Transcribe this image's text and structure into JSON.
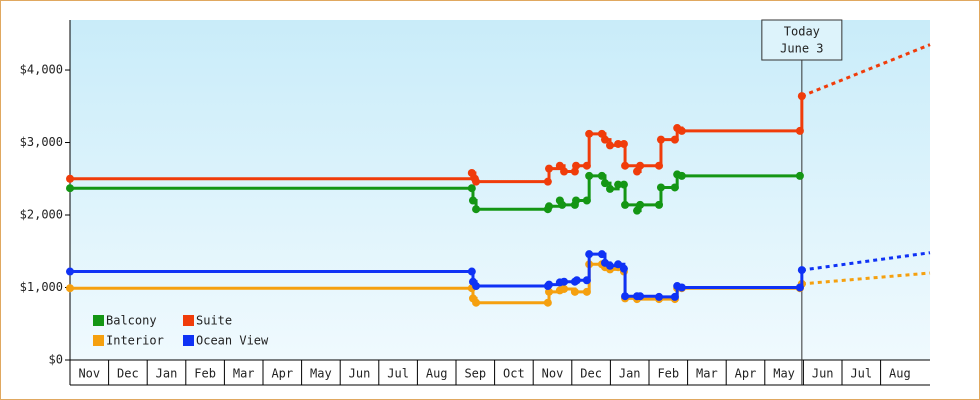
{
  "chart_data": {
    "type": "step-line",
    "categories": [
      "Nov",
      "Dec",
      "Jan",
      "Feb",
      "Mar",
      "Apr",
      "May",
      "Jun",
      "Jul",
      "Aug",
      "Sep",
      "Oct",
      "Nov",
      "Dec",
      "Jan",
      "Feb",
      "Mar",
      "Apr",
      "May",
      "Jun",
      "Jul",
      "Aug"
    ],
    "xlim": [
      0,
      22.28
    ],
    "ylim": [
      0,
      4690
    ],
    "yticks": [
      {
        "value": 0,
        "label": "$0"
      },
      {
        "value": 1000,
        "label": "$1,000"
      },
      {
        "value": 2000,
        "label": "$2,000"
      },
      {
        "value": 3000,
        "label": "$3,000"
      },
      {
        "value": 4000,
        "label": "$4,000"
      }
    ],
    "annotation": {
      "lines": [
        "Today",
        "June 3"
      ],
      "x": 18.96
    },
    "legend": "bottom-left",
    "series": [
      {
        "name": "Balcony",
        "color": "#149614",
        "x": [
          0,
          10.41,
          10.44,
          10.52,
          12.38,
          12.41,
          12.69,
          12.75,
          13.08,
          13.11,
          13.39,
          13.45,
          13.78,
          13.86,
          13.99,
          14.2,
          14.35,
          14.38,
          14.69,
          14.77,
          15.26,
          15.31,
          15.67,
          15.73,
          15.85,
          18.91
        ],
        "values": [
          2370,
          2370,
          2200,
          2080,
          2080,
          2120,
          2200,
          2140,
          2140,
          2200,
          2200,
          2540,
          2540,
          2440,
          2360,
          2420,
          2420,
          2140,
          2060,
          2140,
          2140,
          2380,
          2380,
          2560,
          2540,
          2540
        ]
      },
      {
        "name": "Suite",
        "color": "#f03c0a",
        "x": [
          0,
          10.41,
          10.49,
          10.52,
          12.38,
          12.41,
          12.69,
          12.8,
          13.08,
          13.11,
          13.39,
          13.45,
          13.78,
          13.86,
          13.99,
          14.2,
          14.35,
          14.38,
          14.69,
          14.77,
          15.26,
          15.31,
          15.67,
          15.73,
          15.85,
          18.91,
          18.96
        ],
        "values": [
          2500,
          2580,
          2500,
          2460,
          2460,
          2640,
          2680,
          2600,
          2600,
          2680,
          2680,
          3120,
          3120,
          3040,
          2960,
          2980,
          2980,
          2680,
          2600,
          2680,
          2680,
          3040,
          3040,
          3200,
          3160,
          3160,
          3640
        ],
        "projection": {
          "x": [
            18.96,
            22.28
          ],
          "values": [
            3640,
            4350
          ]
        }
      },
      {
        "name": "Interior",
        "color": "#f5a00f",
        "x": [
          0,
          10.41,
          10.44,
          10.52,
          12.38,
          12.41,
          12.69,
          12.8,
          13.08,
          13.39,
          13.45,
          13.78,
          13.86,
          13.99,
          14.2,
          14.35,
          14.38,
          14.69,
          15.26,
          15.67,
          15.73,
          15.85,
          18.91,
          18.96
        ],
        "values": [
          990,
          990,
          850,
          790,
          790,
          940,
          960,
          980,
          940,
          940,
          1320,
          1320,
          1280,
          1250,
          1280,
          1220,
          850,
          840,
          840,
          840,
          990,
          990,
          990,
          1050
        ],
        "projection": {
          "x": [
            18.96,
            22.28
          ],
          "values": [
            1050,
            1200
          ]
        }
      },
      {
        "name": "Ocean View",
        "color": "#0f32f5",
        "x": [
          0,
          10.41,
          10.44,
          10.52,
          12.38,
          12.41,
          12.69,
          12.8,
          13.08,
          13.13,
          13.39,
          13.45,
          13.78,
          13.86,
          13.99,
          14.2,
          14.35,
          14.38,
          14.69,
          14.77,
          15.26,
          15.67,
          15.73,
          15.85,
          18.91,
          18.96
        ],
        "values": [
          1220,
          1220,
          1080,
          1020,
          1020,
          1040,
          1070,
          1080,
          1080,
          1100,
          1100,
          1460,
          1460,
          1340,
          1300,
          1320,
          1260,
          880,
          880,
          880,
          870,
          870,
          1020,
          1000,
          1000,
          1240
        ],
        "projection": {
          "x": [
            18.96,
            22.28
          ],
          "values": [
            1240,
            1480
          ]
        }
      }
    ]
  }
}
